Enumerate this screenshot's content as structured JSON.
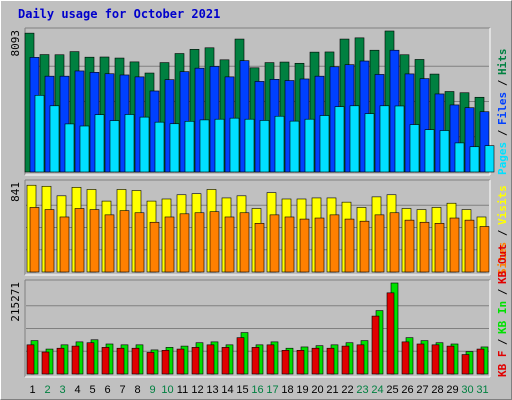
{
  "title": "Daily usage for October 2021",
  "colors": {
    "hits": "#008040",
    "files": "#0040ff",
    "pages": "#00e0ff",
    "visits": "#ffff00",
    "sites": "#ff8000",
    "kbin": "#00e000",
    "kbout": "#e00000",
    "weekend_day": "#008040",
    "weekday": "#000000"
  },
  "chart_data": [
    {
      "type": "bar",
      "name": "hits-files-pages",
      "y_tick_label": "8093",
      "ylim": [
        0,
        8093
      ],
      "legend": [
        "Pages",
        "Files",
        "Hits"
      ],
      "categories": [
        "1",
        "2",
        "3",
        "4",
        "5",
        "6",
        "7",
        "8",
        "9",
        "10",
        "11",
        "12",
        "13",
        "14",
        "15",
        "16",
        "17",
        "18",
        "19",
        "20",
        "21",
        "22",
        "23",
        "24",
        "25",
        "26",
        "27",
        "28",
        "29",
        "30",
        "31"
      ],
      "series": [
        {
          "name": "Hits",
          "values": [
            7970,
            6740,
            6730,
            6910,
            6590,
            6600,
            6540,
            6320,
            5680,
            6280,
            6800,
            7040,
            7130,
            6440,
            7630,
            5980,
            6280,
            6310,
            6240,
            6880,
            6890,
            7630,
            7700,
            6990,
            8093,
            6730,
            6460,
            5620,
            4620,
            4550,
            4290
          ]
        },
        {
          "name": "Files",
          "values": [
            6580,
            5500,
            5500,
            5800,
            5720,
            5640,
            5570,
            5460,
            4650,
            5300,
            5760,
            5960,
            6060,
            5460,
            6390,
            5200,
            5320,
            5250,
            5340,
            5500,
            6040,
            6160,
            6370,
            5600,
            6990,
            5630,
            5360,
            4480,
            3850,
            3690,
            3460
          ]
        },
        {
          "name": "Pages",
          "values": [
            4400,
            3800,
            2760,
            2640,
            3290,
            2950,
            3300,
            3150,
            2860,
            2770,
            2910,
            2990,
            3030,
            3090,
            3030,
            2960,
            3200,
            2920,
            3030,
            3240,
            3750,
            3800,
            3350,
            3800,
            3790,
            2720,
            2430,
            2380,
            1670,
            1450,
            1510
          ]
        }
      ]
    },
    {
      "type": "bar",
      "name": "visits-sites",
      "y_tick_label": "841",
      "ylim": [
        0,
        841
      ],
      "legend": [
        "Sites",
        "Visits"
      ],
      "categories": [
        "1",
        "2",
        "3",
        "4",
        "5",
        "6",
        "7",
        "8",
        "9",
        "10",
        "11",
        "12",
        "13",
        "14",
        "15",
        "16",
        "17",
        "18",
        "19",
        "20",
        "21",
        "22",
        "23",
        "24",
        "25",
        "26",
        "27",
        "28",
        "29",
        "30",
        "31"
      ],
      "series": [
        {
          "name": "Visits",
          "values": [
            820,
            810,
            720,
            800,
            780,
            670,
            780,
            770,
            670,
            690,
            730,
            740,
            780,
            700,
            720,
            600,
            750,
            690,
            690,
            700,
            700,
            660,
            610,
            710,
            730,
            600,
            590,
            610,
            650,
            590,
            520
          ]
        },
        {
          "name": "Sites",
          "values": [
            610,
            590,
            520,
            600,
            590,
            540,
            580,
            560,
            470,
            520,
            550,
            560,
            570,
            520,
            560,
            460,
            540,
            520,
            500,
            510,
            540,
            500,
            480,
            540,
            560,
            490,
            470,
            460,
            510,
            490,
            430
          ]
        }
      ]
    },
    {
      "type": "bar",
      "name": "kb-in-out",
      "y_tick_label": "215271",
      "ylim": [
        0,
        215271
      ],
      "legend": [
        "KB F",
        "KB In",
        "KB Out"
      ],
      "categories": [
        "1",
        "2",
        "3",
        "4",
        "5",
        "6",
        "7",
        "8",
        "9",
        "10",
        "11",
        "12",
        "13",
        "14",
        "15",
        "16",
        "17",
        "18",
        "19",
        "20",
        "21",
        "22",
        "23",
        "24",
        "25",
        "26",
        "27",
        "28",
        "29",
        "30",
        "31"
      ],
      "series": [
        {
          "name": "KB In",
          "values": [
            79000,
            59000,
            69000,
            76000,
            81000,
            71000,
            69000,
            69000,
            57000,
            63000,
            66000,
            74000,
            76000,
            69000,
            98000,
            69000,
            76000,
            61000,
            64000,
            67000,
            69000,
            74000,
            79000,
            150000,
            215271,
            86000,
            79000,
            74000,
            71000,
            53000,
            64000
          ]
        },
        {
          "name": "KB Out",
          "values": [
            69000,
            52000,
            61000,
            66000,
            74000,
            63000,
            61000,
            61000,
            51000,
            56000,
            59000,
            63000,
            69000,
            63000,
            86000,
            63000,
            69000,
            56000,
            56000,
            61000,
            61000,
            66000,
            69000,
            137000,
            192000,
            76000,
            71000,
            69000,
            66000,
            46000,
            59000
          ]
        }
      ]
    }
  ],
  "days": [
    {
      "label": "1",
      "weekend": false
    },
    {
      "label": "2",
      "weekend": true
    },
    {
      "label": "3",
      "weekend": true
    },
    {
      "label": "4",
      "weekend": false
    },
    {
      "label": "5",
      "weekend": false
    },
    {
      "label": "6",
      "weekend": false
    },
    {
      "label": "7",
      "weekend": false
    },
    {
      "label": "8",
      "weekend": false
    },
    {
      "label": "9",
      "weekend": true
    },
    {
      "label": "10",
      "weekend": true
    },
    {
      "label": "11",
      "weekend": false
    },
    {
      "label": "12",
      "weekend": false
    },
    {
      "label": "13",
      "weekend": false
    },
    {
      "label": "14",
      "weekend": false
    },
    {
      "label": "15",
      "weekend": false
    },
    {
      "label": "16",
      "weekend": true
    },
    {
      "label": "17",
      "weekend": true
    },
    {
      "label": "18",
      "weekend": false
    },
    {
      "label": "19",
      "weekend": false
    },
    {
      "label": "20",
      "weekend": false
    },
    {
      "label": "21",
      "weekend": false
    },
    {
      "label": "22",
      "weekend": false
    },
    {
      "label": "23",
      "weekend": true
    },
    {
      "label": "24",
      "weekend": true
    },
    {
      "label": "25",
      "weekend": false
    },
    {
      "label": "26",
      "weekend": false
    },
    {
      "label": "27",
      "weekend": false
    },
    {
      "label": "28",
      "weekend": false
    },
    {
      "label": "29",
      "weekend": false
    },
    {
      "label": "30",
      "weekend": true
    },
    {
      "label": "31",
      "weekend": true
    }
  ]
}
